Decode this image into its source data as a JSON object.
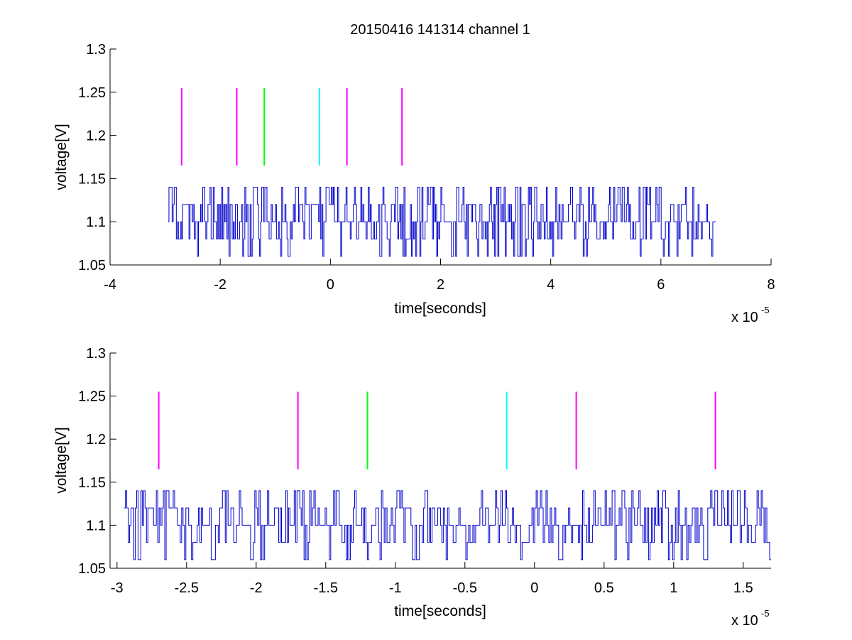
{
  "figure": {
    "title": "20150416 141314 channel 1"
  },
  "chart_data": [
    {
      "type": "line",
      "xlabel": "time[seconds]",
      "ylabel": "voltage[V]",
      "x_multiplier": "x 10",
      "x_exponent": "-5",
      "xlim": [
        -4e-05,
        8e-05
      ],
      "ylim": [
        1.05,
        1.3
      ],
      "xticks": [
        -4e-05,
        -2e-05,
        0,
        2e-05,
        4e-05,
        6e-05,
        8e-05
      ],
      "xtick_labels": [
        "-4",
        "-2",
        "0",
        "2",
        "4",
        "6",
        "8"
      ],
      "yticks": [
        1.05,
        1.1,
        1.15,
        1.2,
        1.25,
        1.3
      ],
      "ytick_labels": [
        "1.05",
        "1.1",
        "1.15",
        "1.2",
        "1.25",
        "1.3"
      ],
      "series": [
        {
          "color": "#0000cc",
          "x_range": [
            -2.95e-05,
            7e-05
          ],
          "levels": [
            1.06,
            1.08,
            1.1,
            1.12,
            1.14
          ]
        }
      ],
      "markers": [
        {
          "x": -2.7e-05,
          "y": [
            1.165,
            1.255
          ],
          "color": "#ff00ff"
        },
        {
          "x": -1.7e-05,
          "y": [
            1.165,
            1.255
          ],
          "color": "#ff00ff"
        },
        {
          "x": -1.2e-05,
          "y": [
            1.165,
            1.255
          ],
          "color": "#00ff00"
        },
        {
          "x": -2e-06,
          "y": [
            1.165,
            1.255
          ],
          "color": "#00ffff"
        },
        {
          "x": 3e-06,
          "y": [
            1.165,
            1.255
          ],
          "color": "#ff00ff"
        },
        {
          "x": 1.3e-05,
          "y": [
            1.165,
            1.255
          ],
          "color": "#ff00ff"
        }
      ]
    },
    {
      "type": "line",
      "xlabel": "time[seconds]",
      "ylabel": "voltage[V]",
      "x_multiplier": "x 10",
      "x_exponent": "-5",
      "xlim": [
        -3.05e-05,
        1.7e-05
      ],
      "ylim": [
        1.05,
        1.3
      ],
      "xticks": [
        -3e-05,
        -2.5e-05,
        -2e-05,
        -1.5e-05,
        -1e-05,
        -5e-06,
        0,
        5e-06,
        1e-05,
        1.5e-05
      ],
      "xtick_labels": [
        "-3",
        "-2.5",
        "-2",
        "-1.5",
        "-1",
        "-0.5",
        "0",
        "0.5",
        "1",
        "1.5"
      ],
      "yticks": [
        1.05,
        1.1,
        1.15,
        1.2,
        1.25,
        1.3
      ],
      "ytick_labels": [
        "1.05",
        "1.1",
        "1.15",
        "1.2",
        "1.25",
        "1.3"
      ],
      "series": [
        {
          "color": "#0000cc",
          "x_range": [
            -2.95e-05,
            1.7e-05
          ],
          "levels": [
            1.06,
            1.08,
            1.1,
            1.12,
            1.14
          ]
        }
      ],
      "markers": [
        {
          "x": -2.7e-05,
          "y": [
            1.165,
            1.255
          ],
          "color": "#ff00ff"
        },
        {
          "x": -1.7e-05,
          "y": [
            1.165,
            1.255
          ],
          "color": "#ff00ff"
        },
        {
          "x": -1.2e-05,
          "y": [
            1.165,
            1.255
          ],
          "color": "#00ff00"
        },
        {
          "x": -2e-06,
          "y": [
            1.165,
            1.255
          ],
          "color": "#00ffff"
        },
        {
          "x": 3e-06,
          "y": [
            1.165,
            1.255
          ],
          "color": "#ff00ff"
        },
        {
          "x": 1.3e-05,
          "y": [
            1.165,
            1.255
          ],
          "color": "#ff00ff"
        }
      ]
    }
  ]
}
